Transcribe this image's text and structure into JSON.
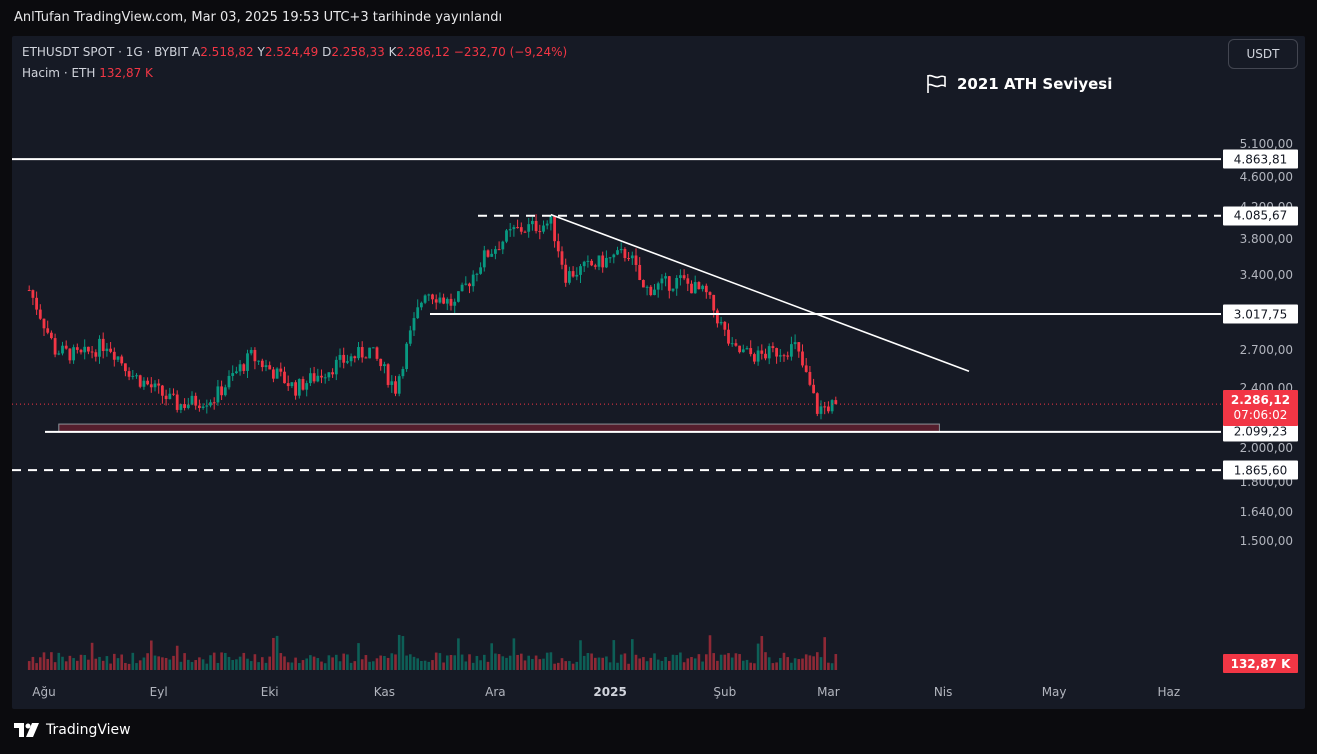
{
  "caption": "AnlTufan TradingView.com, Mar 03, 2025 19:53 UTC+3 tarihinde yayınlandı",
  "legend": {
    "symbol": "ETHUSDT SPOT · 1G · BYBIT",
    "open_label": "A",
    "open": "2.518,82",
    "high_label": "Y",
    "high": "2.524,49",
    "low_label": "D",
    "low": "2.258,33",
    "close_label": "K",
    "close": "2.286,12",
    "change": "−232,70 (−9,24%)",
    "volume_label": "Hacim · ETH",
    "volume": "132,87 K"
  },
  "currency_button": "USDT",
  "annotation": "2021 ATH Seviyesi",
  "price_axis": [
    "5.100,00",
    "4.600,00",
    "4.200,00",
    "3.800,00",
    "3.400,00",
    "2.700,00",
    "2.400,00",
    "2.000,00",
    "1.800,00",
    "1.640,00",
    "1.500,00"
  ],
  "time_axis": [
    {
      "label": "Ağu",
      "bold": false
    },
    {
      "label": "Eyl",
      "bold": false
    },
    {
      "label": "Eki",
      "bold": false
    },
    {
      "label": "Kas",
      "bold": false
    },
    {
      "label": "Ara",
      "bold": false
    },
    {
      "label": "2025",
      "bold": true
    },
    {
      "label": "Şub",
      "bold": false
    },
    {
      "label": "Mar",
      "bold": false
    },
    {
      "label": "Nis",
      "bold": false
    },
    {
      "label": "May",
      "bold": false
    },
    {
      "label": "Haz",
      "bold": false
    }
  ],
  "levels": [
    {
      "price": 4863.81,
      "label": "4.863,81",
      "style": "solid"
    },
    {
      "price": 4085.67,
      "label": "4.085,67",
      "style": "dashed"
    },
    {
      "price": 3017.75,
      "label": "3.017,75",
      "style": "solid"
    },
    {
      "price": 2099.23,
      "label": "2.099,23",
      "style": "solid"
    },
    {
      "price": 1865.6,
      "label": "1.865,60",
      "style": "dashed"
    }
  ],
  "last_price": {
    "price": 2286.12,
    "label": "2.286,12",
    "countdown": "07:06:02"
  },
  "volume_badge": "132,87 K",
  "brand": "TradingView",
  "colors": {
    "up": "#089981",
    "down": "#f23645",
    "background": "#161a25",
    "zone": "#5c1f2e"
  },
  "chart_data": {
    "type": "candlestick",
    "interval": "1D",
    "trend_line": {
      "from": "2024-12-16",
      "from_price": 4100,
      "to": "2025-04-08",
      "to_price": 2530
    },
    "support_zone": {
      "from": "2024-08-05",
      "to": "2025-03-31",
      "top": 2150,
      "bottom": 2099.23
    },
    "close_path": [
      {
        "date": "2024-07-28",
        "close": 3250
      },
      {
        "date": "2024-08-04",
        "close": 2700
      },
      {
        "date": "2024-08-11",
        "close": 2650
      },
      {
        "date": "2024-08-18",
        "close": 2760
      },
      {
        "date": "2024-08-25",
        "close": 2500
      },
      {
        "date": "2024-09-06",
        "close": 2280
      },
      {
        "date": "2024-09-16",
        "close": 2330
      },
      {
        "date": "2024-09-26",
        "close": 2650
      },
      {
        "date": "2024-10-08",
        "close": 2400
      },
      {
        "date": "2024-10-20",
        "close": 2600
      },
      {
        "date": "2024-10-28",
        "close": 2700
      },
      {
        "date": "2024-11-04",
        "close": 2400
      },
      {
        "date": "2024-11-12",
        "close": 3250
      },
      {
        "date": "2024-11-20",
        "close": 3100
      },
      {
        "date": "2024-11-28",
        "close": 3600
      },
      {
        "date": "2024-12-06",
        "close": 3900
      },
      {
        "date": "2024-12-16",
        "close": 4000
      },
      {
        "date": "2024-12-20",
        "close": 3400
      },
      {
        "date": "2025-01-06",
        "close": 3650
      },
      {
        "date": "2025-01-10",
        "close": 3250
      },
      {
        "date": "2025-01-20",
        "close": 3350
      },
      {
        "date": "2025-01-27",
        "close": 3200
      },
      {
        "date": "2025-02-03",
        "close": 2700
      },
      {
        "date": "2025-02-10",
        "close": 2650
      },
      {
        "date": "2025-02-20",
        "close": 2730
      },
      {
        "date": "2025-02-26",
        "close": 2250
      },
      {
        "date": "2025-03-03",
        "close": 2286.12
      }
    ]
  }
}
